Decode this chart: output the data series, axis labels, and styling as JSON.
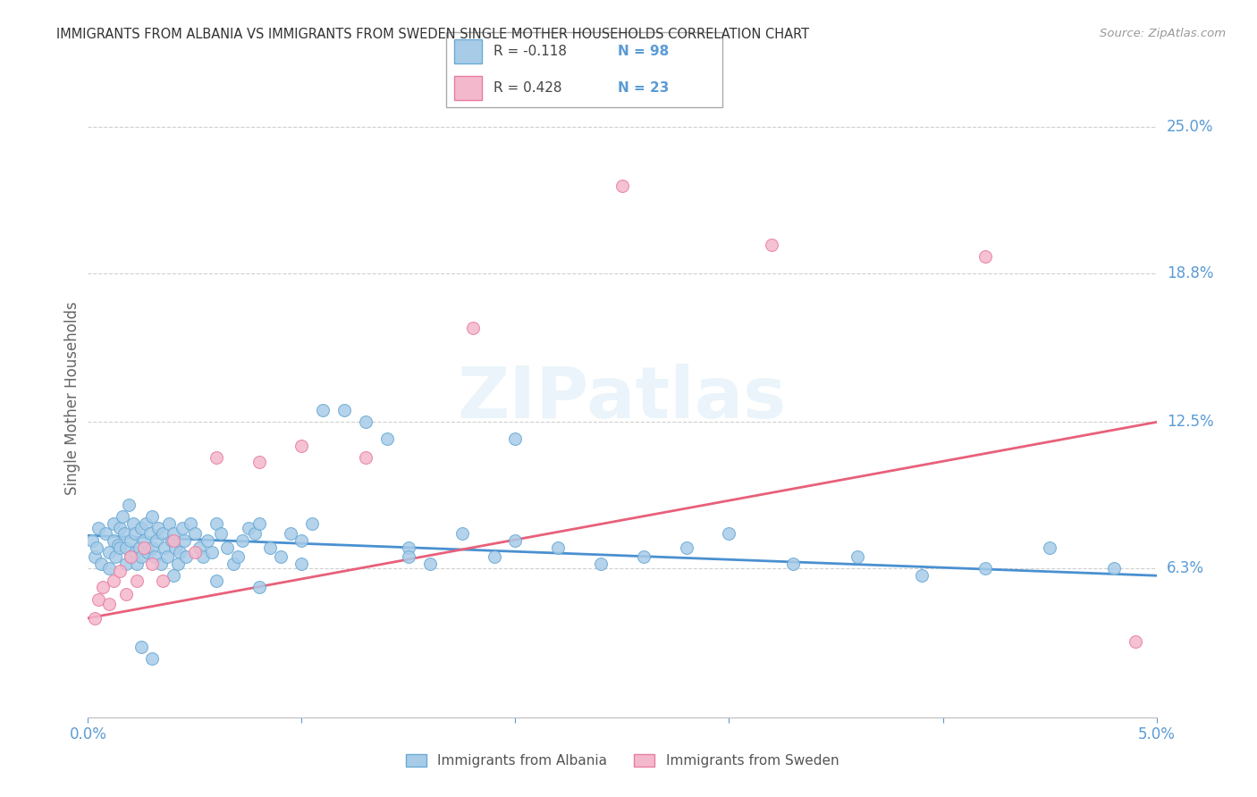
{
  "title": "IMMIGRANTS FROM ALBANIA VS IMMIGRANTS FROM SWEDEN SINGLE MOTHER HOUSEHOLDS CORRELATION CHART",
  "source": "Source: ZipAtlas.com",
  "ylabel": "Single Mother Households",
  "xlim": [
    0.0,
    0.05
  ],
  "ylim": [
    0.0,
    0.27
  ],
  "ytick_labels": [
    "6.3%",
    "12.5%",
    "18.8%",
    "25.0%"
  ],
  "ytick_values": [
    0.063,
    0.125,
    0.188,
    0.25
  ],
  "legend1_r": "R = -0.118",
  "legend1_n": "N = 98",
  "legend2_r": "R = 0.428",
  "legend2_n": "N = 23",
  "color_albania": "#a8cce8",
  "color_sweden": "#f4b8cc",
  "color_albania_edge": "#6aaad4",
  "color_sweden_edge": "#e87da0",
  "color_albania_line": "#4a90d0",
  "color_sweden_line": "#e8607a",
  "color_labels": "#5b9bd5",
  "background_color": "#ffffff",
  "grid_color": "#d0d0d0",
  "watermark": "ZIPatlas",
  "albania_x": [
    0.0002,
    0.0003,
    0.0004,
    0.0005,
    0.0006,
    0.0008,
    0.001,
    0.001,
    0.0012,
    0.0012,
    0.0013,
    0.0014,
    0.0015,
    0.0015,
    0.0016,
    0.0017,
    0.0018,
    0.0018,
    0.0019,
    0.002,
    0.002,
    0.0021,
    0.0022,
    0.0022,
    0.0023,
    0.0024,
    0.0025,
    0.0025,
    0.0026,
    0.0027,
    0.0028,
    0.0029,
    0.003,
    0.003,
    0.0031,
    0.0032,
    0.0033,
    0.0034,
    0.0035,
    0.0036,
    0.0037,
    0.0038,
    0.0039,
    0.004,
    0.0041,
    0.0042,
    0.0043,
    0.0044,
    0.0045,
    0.0046,
    0.0048,
    0.005,
    0.0052,
    0.0054,
    0.0056,
    0.0058,
    0.006,
    0.0062,
    0.0065,
    0.0068,
    0.007,
    0.0072,
    0.0075,
    0.0078,
    0.008,
    0.0085,
    0.009,
    0.0095,
    0.01,
    0.0105,
    0.011,
    0.012,
    0.013,
    0.014,
    0.015,
    0.016,
    0.0175,
    0.019,
    0.02,
    0.022,
    0.024,
    0.026,
    0.028,
    0.03,
    0.033,
    0.036,
    0.039,
    0.042,
    0.045,
    0.048,
    0.02,
    0.015,
    0.01,
    0.008,
    0.006,
    0.004,
    0.003,
    0.0025
  ],
  "albania_y": [
    0.075,
    0.068,
    0.072,
    0.08,
    0.065,
    0.078,
    0.07,
    0.063,
    0.082,
    0.075,
    0.068,
    0.073,
    0.08,
    0.072,
    0.085,
    0.078,
    0.065,
    0.072,
    0.09,
    0.075,
    0.068,
    0.082,
    0.078,
    0.07,
    0.065,
    0.072,
    0.08,
    0.068,
    0.075,
    0.082,
    0.07,
    0.078,
    0.085,
    0.072,
    0.068,
    0.075,
    0.08,
    0.065,
    0.078,
    0.072,
    0.068,
    0.082,
    0.075,
    0.078,
    0.072,
    0.065,
    0.07,
    0.08,
    0.075,
    0.068,
    0.082,
    0.078,
    0.072,
    0.068,
    0.075,
    0.07,
    0.082,
    0.078,
    0.072,
    0.065,
    0.068,
    0.075,
    0.08,
    0.078,
    0.082,
    0.072,
    0.068,
    0.078,
    0.075,
    0.082,
    0.13,
    0.13,
    0.125,
    0.118,
    0.072,
    0.065,
    0.078,
    0.068,
    0.075,
    0.072,
    0.065,
    0.068,
    0.072,
    0.078,
    0.065,
    0.068,
    0.06,
    0.063,
    0.072,
    0.063,
    0.118,
    0.068,
    0.065,
    0.055,
    0.058,
    0.06,
    0.025,
    0.03
  ],
  "sweden_x": [
    0.0003,
    0.0005,
    0.0007,
    0.001,
    0.0012,
    0.0015,
    0.0018,
    0.002,
    0.0023,
    0.0026,
    0.003,
    0.0035,
    0.004,
    0.005,
    0.006,
    0.008,
    0.01,
    0.013,
    0.018,
    0.025,
    0.032,
    0.042,
    0.049
  ],
  "sweden_y": [
    0.042,
    0.05,
    0.055,
    0.048,
    0.058,
    0.062,
    0.052,
    0.068,
    0.058,
    0.072,
    0.065,
    0.058,
    0.075,
    0.07,
    0.11,
    0.108,
    0.115,
    0.11,
    0.165,
    0.225,
    0.2,
    0.195,
    0.032
  ],
  "albania_trend_x": [
    0.0,
    0.05
  ],
  "albania_trend_y": [
    0.077,
    0.06
  ],
  "sweden_trend_x": [
    0.0,
    0.05
  ],
  "sweden_trend_y": [
    0.042,
    0.125
  ]
}
